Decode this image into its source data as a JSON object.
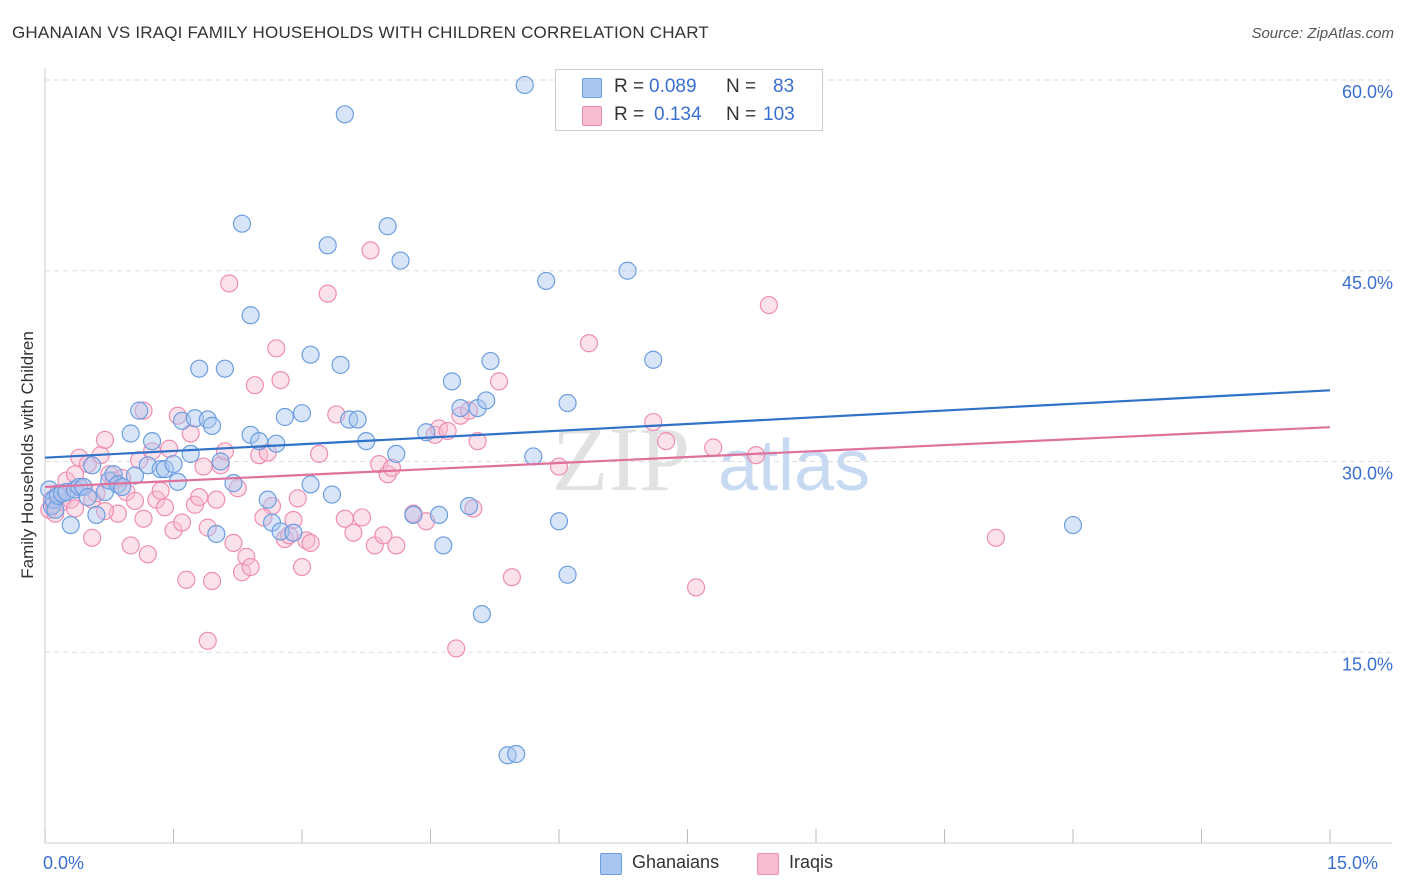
{
  "title": "GHANAIAN VS IRAQI FAMILY HOUSEHOLDS WITH CHILDREN CORRELATION CHART",
  "source": "Source: ZipAtlas.com",
  "watermark": {
    "zip": "ZIP",
    "atlas": "atlas"
  },
  "legend": {
    "rows": [
      {
        "r_label": "R =",
        "r_value": "0.089",
        "n_label": "N =",
        "n_value": "83"
      },
      {
        "r_label": "R =",
        "r_value": "0.134",
        "n_label": "N =",
        "n_value": "103"
      }
    ]
  },
  "bottom_legend": {
    "ghanaians": "Ghanaians",
    "iraqis": "Iraqis"
  },
  "colors": {
    "blue_fill": "#a9c6f0",
    "blue_stroke": "#6d9ee0",
    "blue_line": "#2f72c8",
    "pink_fill": "#f7bcd0",
    "pink_stroke": "#ee8fb2",
    "pink_line": "#e0709c",
    "tick_label": "#3a6fd0",
    "grid": "#dddddd"
  },
  "chart_data": {
    "type": "scatter",
    "title": "GHANAIAN VS IRAQI FAMILY HOUSEHOLDS WITH CHILDREN CORRELATION CHART",
    "xlabel": "",
    "ylabel": "Family Households with Children",
    "xlim": [
      0,
      15
    ],
    "ylim": [
      0,
      60
    ],
    "x_tick_labels": [
      "0.0%",
      "15.0%"
    ],
    "y_ticks": [
      15,
      30,
      45,
      60
    ],
    "y_tick_labels": [
      "15.0%",
      "30.0%",
      "45.0%",
      "60.0%"
    ],
    "series": [
      {
        "name": "Ghanaians",
        "r": 0.089,
        "n": 83,
        "trend": {
          "x": [
            0,
            15
          ],
          "y": [
            30.3,
            35.6
          ]
        },
        "points": [
          [
            0.05,
            27.8
          ],
          [
            0.08,
            26.5
          ],
          [
            0.1,
            27.0
          ],
          [
            0.12,
            26.2
          ],
          [
            0.15,
            27.3
          ],
          [
            0.2,
            27.5
          ],
          [
            0.25,
            27.6
          ],
          [
            0.3,
            25.0
          ],
          [
            0.35,
            27.8
          ],
          [
            0.4,
            28.0
          ],
          [
            0.45,
            28.0
          ],
          [
            0.5,
            27.2
          ],
          [
            0.55,
            29.7
          ],
          [
            0.6,
            25.8
          ],
          [
            0.7,
            27.6
          ],
          [
            0.75,
            28.5
          ],
          [
            0.8,
            29.0
          ],
          [
            0.85,
            28.2
          ],
          [
            0.9,
            28.0
          ],
          [
            1.0,
            32.2
          ],
          [
            1.05,
            28.9
          ],
          [
            1.1,
            34.0
          ],
          [
            1.2,
            29.7
          ],
          [
            1.25,
            31.6
          ],
          [
            1.35,
            29.4
          ],
          [
            1.4,
            29.4
          ],
          [
            1.5,
            29.8
          ],
          [
            1.55,
            28.4
          ],
          [
            1.6,
            33.2
          ],
          [
            1.7,
            30.6
          ],
          [
            1.75,
            33.4
          ],
          [
            1.8,
            37.3
          ],
          [
            1.9,
            33.3
          ],
          [
            1.95,
            32.8
          ],
          [
            2.0,
            24.3
          ],
          [
            2.05,
            30.0
          ],
          [
            2.1,
            37.3
          ],
          [
            2.2,
            28.3
          ],
          [
            2.3,
            48.7
          ],
          [
            2.4,
            32.1
          ],
          [
            2.4,
            41.5
          ],
          [
            2.5,
            31.6
          ],
          [
            2.6,
            27.0
          ],
          [
            2.65,
            25.2
          ],
          [
            2.75,
            24.5
          ],
          [
            2.7,
            31.4
          ],
          [
            2.8,
            33.5
          ],
          [
            2.9,
            24.4
          ],
          [
            3.0,
            33.8
          ],
          [
            3.1,
            28.2
          ],
          [
            3.1,
            38.4
          ],
          [
            3.3,
            47.0
          ],
          [
            3.35,
            27.4
          ],
          [
            3.45,
            37.6
          ],
          [
            3.5,
            57.3
          ],
          [
            3.55,
            33.3
          ],
          [
            3.65,
            33.3
          ],
          [
            3.75,
            31.6
          ],
          [
            4.0,
            48.5
          ],
          [
            4.1,
            30.6
          ],
          [
            4.15,
            45.8
          ],
          [
            4.3,
            25.8
          ],
          [
            4.45,
            32.3
          ],
          [
            4.6,
            25.8
          ],
          [
            4.65,
            23.4
          ],
          [
            4.75,
            36.3
          ],
          [
            4.85,
            34.2
          ],
          [
            4.95,
            26.5
          ],
          [
            5.05,
            34.2
          ],
          [
            5.1,
            18.0
          ],
          [
            5.15,
            34.8
          ],
          [
            5.2,
            37.9
          ],
          [
            5.4,
            6.9
          ],
          [
            5.5,
            7.0
          ],
          [
            5.6,
            59.6
          ],
          [
            5.7,
            30.4
          ],
          [
            5.85,
            44.2
          ],
          [
            6.0,
            25.3
          ],
          [
            6.1,
            21.1
          ],
          [
            6.1,
            34.6
          ],
          [
            6.8,
            45.0
          ],
          [
            7.1,
            38.0
          ],
          [
            12.0,
            25.0
          ]
        ]
      },
      {
        "name": "Iraqis",
        "r": 0.134,
        "n": 103,
        "trend": {
          "x": [
            0,
            15
          ],
          "y": [
            28.0,
            32.7
          ]
        },
        "points": [
          [
            0.05,
            26.2
          ],
          [
            0.08,
            27.0
          ],
          [
            0.1,
            26.6
          ],
          [
            0.12,
            25.9
          ],
          [
            0.15,
            27.5
          ],
          [
            0.2,
            26.8
          ],
          [
            0.25,
            28.5
          ],
          [
            0.3,
            27.0
          ],
          [
            0.35,
            26.3
          ],
          [
            0.4,
            30.3
          ],
          [
            0.45,
            28.0
          ],
          [
            0.5,
            29.8
          ],
          [
            0.55,
            27.0
          ],
          [
            0.6,
            27.5
          ],
          [
            0.65,
            30.5
          ],
          [
            0.7,
            31.7
          ],
          [
            0.75,
            29.0
          ],
          [
            0.8,
            28.5
          ],
          [
            0.85,
            25.9
          ],
          [
            0.9,
            28.7
          ],
          [
            0.95,
            27.6
          ],
          [
            1.0,
            23.4
          ],
          [
            1.05,
            26.9
          ],
          [
            1.1,
            30.1
          ],
          [
            1.15,
            34.0
          ],
          [
            1.2,
            22.7
          ],
          [
            1.25,
            30.8
          ],
          [
            1.3,
            27.0
          ],
          [
            1.35,
            27.7
          ],
          [
            1.4,
            26.4
          ],
          [
            1.45,
            31.0
          ],
          [
            1.5,
            24.6
          ],
          [
            1.55,
            33.6
          ],
          [
            1.6,
            25.2
          ],
          [
            1.65,
            20.7
          ],
          [
            1.7,
            32.2
          ],
          [
            1.75,
            26.6
          ],
          [
            1.8,
            27.2
          ],
          [
            1.85,
            29.6
          ],
          [
            1.9,
            24.8
          ],
          [
            1.95,
            20.6
          ],
          [
            2.0,
            27.0
          ],
          [
            2.05,
            29.7
          ],
          [
            2.1,
            30.8
          ],
          [
            2.15,
            44.0
          ],
          [
            2.2,
            23.6
          ],
          [
            2.25,
            27.9
          ],
          [
            2.3,
            21.3
          ],
          [
            2.35,
            22.5
          ],
          [
            2.4,
            21.7
          ],
          [
            2.45,
            36.0
          ],
          [
            2.5,
            30.5
          ],
          [
            2.6,
            30.7
          ],
          [
            2.65,
            26.5
          ],
          [
            2.7,
            38.9
          ],
          [
            2.75,
            36.4
          ],
          [
            2.8,
            23.9
          ],
          [
            2.85,
            24.2
          ],
          [
            2.9,
            25.4
          ],
          [
            2.95,
            27.1
          ],
          [
            3.0,
            21.7
          ],
          [
            3.05,
            23.8
          ],
          [
            3.1,
            23.6
          ],
          [
            3.2,
            30.6
          ],
          [
            3.3,
            43.2
          ],
          [
            3.4,
            33.7
          ],
          [
            3.5,
            25.5
          ],
          [
            3.6,
            24.4
          ],
          [
            3.7,
            25.6
          ],
          [
            3.8,
            46.6
          ],
          [
            3.85,
            23.4
          ],
          [
            3.9,
            29.8
          ],
          [
            3.95,
            24.2
          ],
          [
            4.0,
            29.0
          ],
          [
            4.05,
            29.5
          ],
          [
            4.1,
            23.4
          ],
          [
            4.3,
            25.9
          ],
          [
            4.45,
            25.3
          ],
          [
            4.55,
            32.1
          ],
          [
            4.6,
            32.6
          ],
          [
            4.7,
            32.4
          ],
          [
            4.8,
            15.3
          ],
          [
            4.85,
            33.6
          ],
          [
            4.95,
            34.0
          ],
          [
            5.0,
            26.3
          ],
          [
            5.05,
            31.6
          ],
          [
            5.3,
            36.3
          ],
          [
            5.45,
            20.9
          ],
          [
            6.0,
            29.6
          ],
          [
            6.35,
            39.3
          ],
          [
            7.1,
            33.1
          ],
          [
            7.25,
            31.6
          ],
          [
            7.6,
            20.1
          ],
          [
            7.8,
            31.1
          ],
          [
            8.3,
            30.5
          ],
          [
            8.45,
            42.3
          ],
          [
            11.1,
            24.0
          ],
          [
            0.35,
            29.0
          ],
          [
            0.55,
            24.0
          ],
          [
            0.7,
            26.1
          ],
          [
            1.15,
            25.5
          ],
          [
            1.9,
            15.9
          ],
          [
            2.55,
            25.6
          ]
        ]
      }
    ]
  }
}
